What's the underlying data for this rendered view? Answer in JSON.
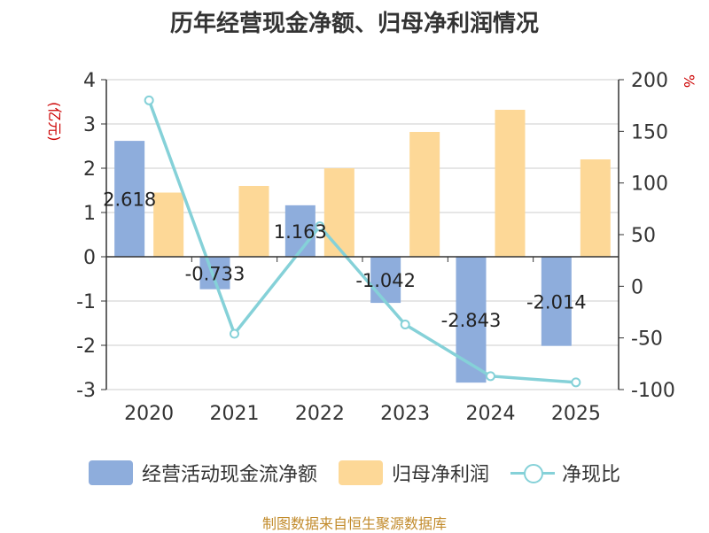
{
  "title": "历年经营现金净额、归母净利润情况",
  "source": "制图数据来自恒生聚源数据库",
  "colors": {
    "bar1": "#8eaddc",
    "bar2": "#fdd897",
    "line": "#85d1d8",
    "axis_unit": "#cc0000"
  },
  "legend": [
    {
      "label": "经营活动现金流净额",
      "kind": "bar",
      "color": "#8eaddc"
    },
    {
      "label": "归母净利润",
      "kind": "bar",
      "color": "#fdd897"
    },
    {
      "label": "净现比",
      "kind": "line",
      "color": "#85d1d8"
    }
  ],
  "chart_data": {
    "type": "bar",
    "categories": [
      "2020",
      "2021",
      "2022",
      "2023",
      "2024",
      "2025"
    ],
    "series": [
      {
        "name": "经营活动现金流净额",
        "axis": "left",
        "values": [
          2.618,
          -0.733,
          1.163,
          -1.042,
          -2.843,
          -2.014
        ],
        "data_labels": [
          "2.618",
          "-0.733",
          "1.163",
          "-1.042",
          "-2.843",
          "-2.014"
        ]
      },
      {
        "name": "归母净利润",
        "axis": "left",
        "values": [
          1.45,
          1.6,
          2.0,
          2.82,
          3.32,
          2.2
        ]
      },
      {
        "name": "净现比",
        "axis": "right",
        "type": "line",
        "values": [
          180,
          -46,
          58,
          -37,
          -87,
          -93
        ]
      }
    ],
    "y_left": {
      "label": "(亿元)",
      "ylim": [
        -3,
        4
      ],
      "ticks": [
        "4",
        "3",
        "2",
        "1",
        "0",
        "-1",
        "-2",
        "-3"
      ]
    },
    "y_right": {
      "label": "%",
      "ylim": [
        -100,
        200
      ],
      "ticks": [
        "200",
        "150",
        "100",
        "50",
        "0",
        "-50",
        "-100"
      ]
    },
    "grid": true,
    "legend_position": "bottom"
  }
}
